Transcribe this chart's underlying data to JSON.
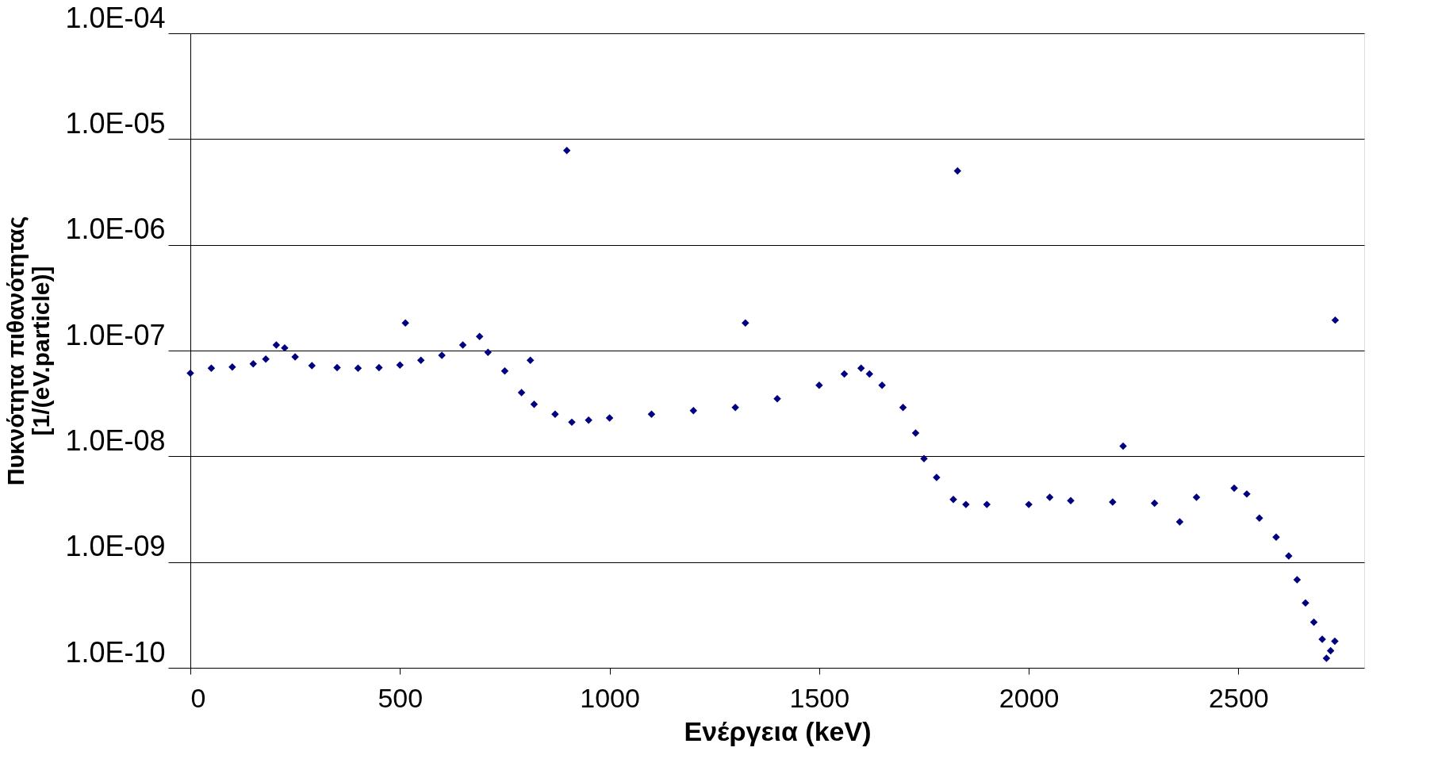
{
  "chart_data": {
    "type": "scatter",
    "xlabel": "Ενέργεια (keV)",
    "ylabel": "Πυκνότητα πιθανότητας\n[1/(eV.particle)]",
    "log": "y",
    "grid": "y",
    "legend": false,
    "marker": "diamond",
    "xlim": [
      0,
      2800
    ],
    "xticks": [
      0,
      500,
      1000,
      1500,
      2000,
      2500
    ],
    "ylim": [
      1e-10,
      0.0001
    ],
    "yticks": [
      {
        "value": 1e-10,
        "label": "1.0E-10"
      },
      {
        "value": 1e-09,
        "label": "1.0E-09"
      },
      {
        "value": 1e-08,
        "label": "1.0E-08"
      },
      {
        "value": 1e-07,
        "label": "1.0E-07"
      },
      {
        "value": 1e-06,
        "label": "1.0E-06"
      },
      {
        "value": 1e-05,
        "label": "1.0E-05"
      },
      {
        "value": 0.0001,
        "label": "1.0E-04"
      }
    ],
    "series": [
      {
        "color": "#000080",
        "x": [
          0,
          50,
          100,
          150,
          180,
          205,
          225,
          250,
          290,
          350,
          400,
          450,
          500,
          550,
          600,
          650,
          690,
          710,
          750,
          790,
          820,
          870,
          910,
          950,
          1000,
          1100,
          1200,
          1300,
          1400,
          1500,
          1560,
          1600,
          1620,
          1650,
          1700,
          1730,
          1750,
          1780,
          1820,
          1850,
          1900,
          2000,
          2050,
          2100,
          2200,
          2300,
          2400,
          2490,
          2520,
          2550,
          2590,
          2620,
          2640,
          2660,
          2680,
          2700,
          2720,
          2730,
          2710,
          898,
          1830,
          513,
          1324,
          811,
          2225,
          2731,
          2360
        ],
        "values": [
          6.1e-08,
          6.8e-08,
          7e-08,
          7.5e-08,
          8.3e-08,
          1.13e-07,
          1.06e-07,
          8.7e-08,
          7.2e-08,
          6.9e-08,
          6.8e-08,
          6.9e-08,
          7.3e-08,
          8.1e-08,
          9e-08,
          1.13e-07,
          1.36e-07,
          9.6e-08,
          6.4e-08,
          4e-08,
          3.1e-08,
          2.5e-08,
          2.1e-08,
          2.2e-08,
          2.3e-08,
          2.5e-08,
          2.7e-08,
          2.9e-08,
          3.5e-08,
          4.7e-08,
          6e-08,
          6.8e-08,
          6e-08,
          4.7e-08,
          2.9e-08,
          1.66e-08,
          9.5e-09,
          6.3e-09,
          3.9e-09,
          3.5e-09,
          3.5e-09,
          3.5e-09,
          4.1e-09,
          3.8e-09,
          3.7e-09,
          3.6e-09,
          4.1e-09,
          5e-09,
          4.4e-09,
          2.6e-09,
          1.72e-09,
          1.14e-09,
          6.8e-10,
          4.1e-10,
          2.7e-10,
          1.86e-10,
          1.45e-10,
          1.78e-10,
          1.23e-10,
          7.8e-06,
          5e-06,
          1.82e-07,
          1.82e-07,
          8.1e-08,
          1.25e-08,
          1.94e-07,
          2.4e-09
        ]
      }
    ]
  }
}
